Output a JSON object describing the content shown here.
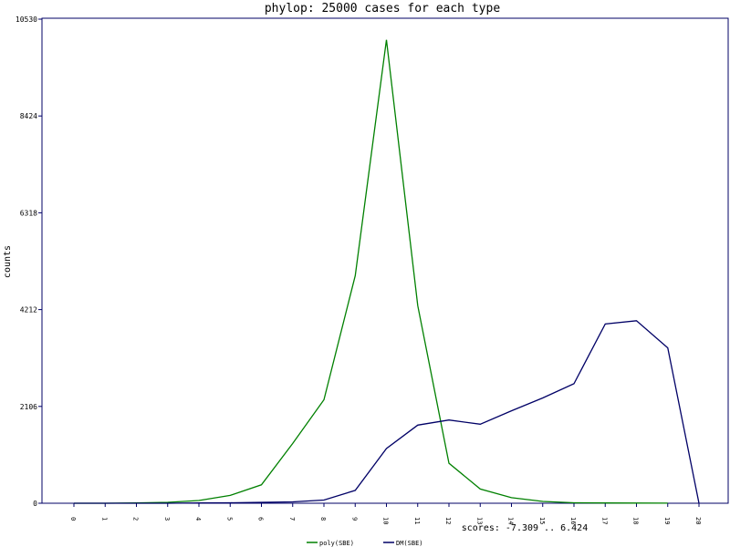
{
  "chart_data": {
    "type": "line",
    "title": "phylop: 25000 cases for each type",
    "ylabel": "counts",
    "xlabel": "scores: -7.309 .. 6.424",
    "x": [
      "0",
      "1",
      "2",
      "3",
      "4",
      "5",
      "6",
      "7",
      "8",
      "9",
      "10",
      "11",
      "12",
      "13",
      "14",
      "15",
      "16",
      "17",
      "18",
      "19",
      "20"
    ],
    "ylim": [
      0,
      10530
    ],
    "yticks": [
      "0",
      "2106",
      "4212",
      "6318",
      "8424",
      "10530"
    ],
    "legend_position": "bottom-center",
    "grid": false,
    "series": [
      {
        "name": "poly(SBE)",
        "color": "#008000",
        "values": [
          0,
          0,
          5,
          20,
          60,
          170,
          400,
          1300,
          2250,
          4950,
          10080,
          4300,
          870,
          310,
          120,
          40,
          10,
          5,
          3,
          2,
          null
        ]
      },
      {
        "name": "DM(SBE)",
        "color": "#000066",
        "values": [
          0,
          0,
          0,
          0,
          5,
          10,
          20,
          30,
          70,
          280,
          1190,
          1700,
          1810,
          1720,
          2010,
          2290,
          2600,
          3900,
          3970,
          3380,
          0
        ]
      }
    ]
  },
  "colors": {
    "frame": "#000066",
    "text": "#000066"
  }
}
